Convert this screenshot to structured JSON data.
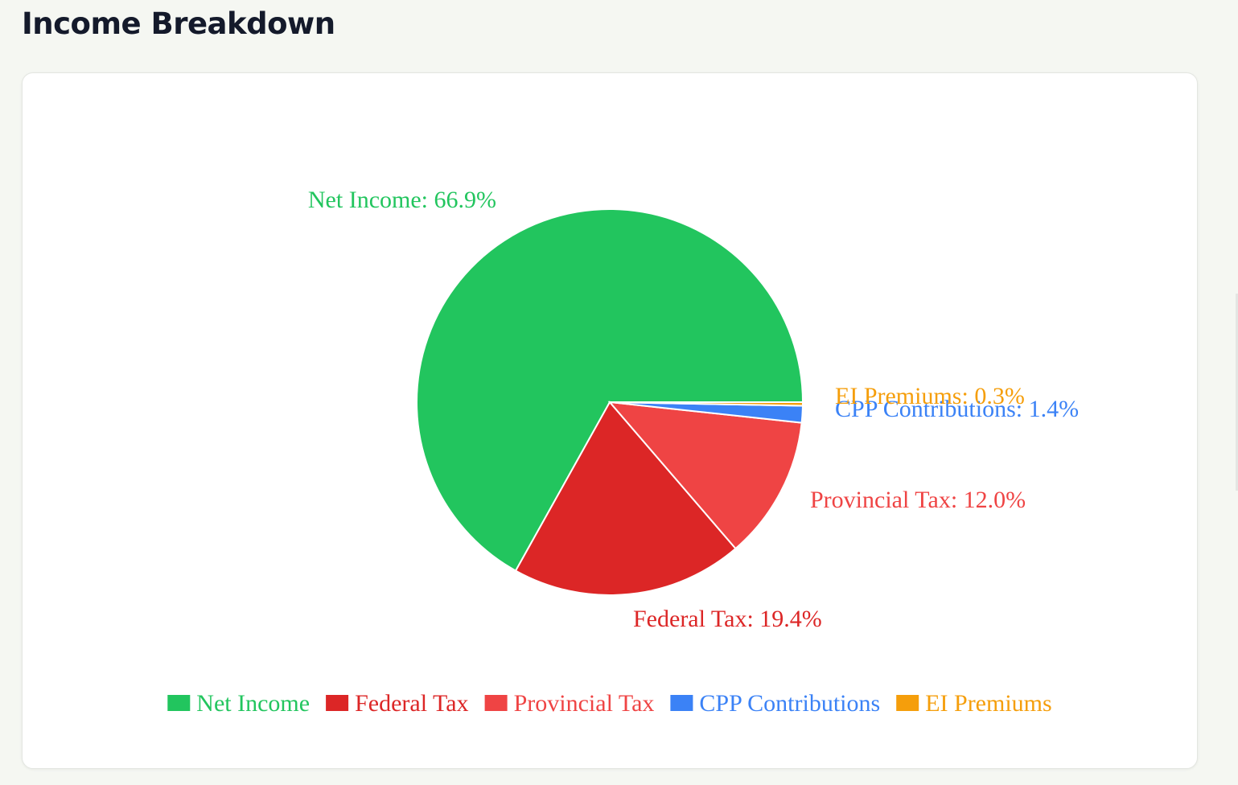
{
  "page": {
    "title": "Income Breakdown"
  },
  "chart_data": {
    "type": "pie",
    "categories": [
      "Net Income",
      "Federal Tax",
      "Provincial Tax",
      "CPP Contributions",
      "EI Premiums"
    ],
    "values": [
      66.9,
      19.4,
      12.0,
      1.4,
      0.3
    ],
    "unit": "%",
    "labels": [
      "Net Income: 66.9%",
      "Federal Tax: 19.4%",
      "Provincial Tax: 12.0%",
      "CPP Contributions: 1.4%",
      "EI Premiums: 0.3%"
    ],
    "colors": [
      "#22c55e",
      "#dc2626",
      "#ef4444",
      "#3b82f6",
      "#f59e0b"
    ],
    "legend": {
      "position": "bottom",
      "entries": [
        "Net Income",
        "Federal Tax",
        "Provincial Tax",
        "CPP Contributions",
        "EI Premiums"
      ]
    }
  }
}
